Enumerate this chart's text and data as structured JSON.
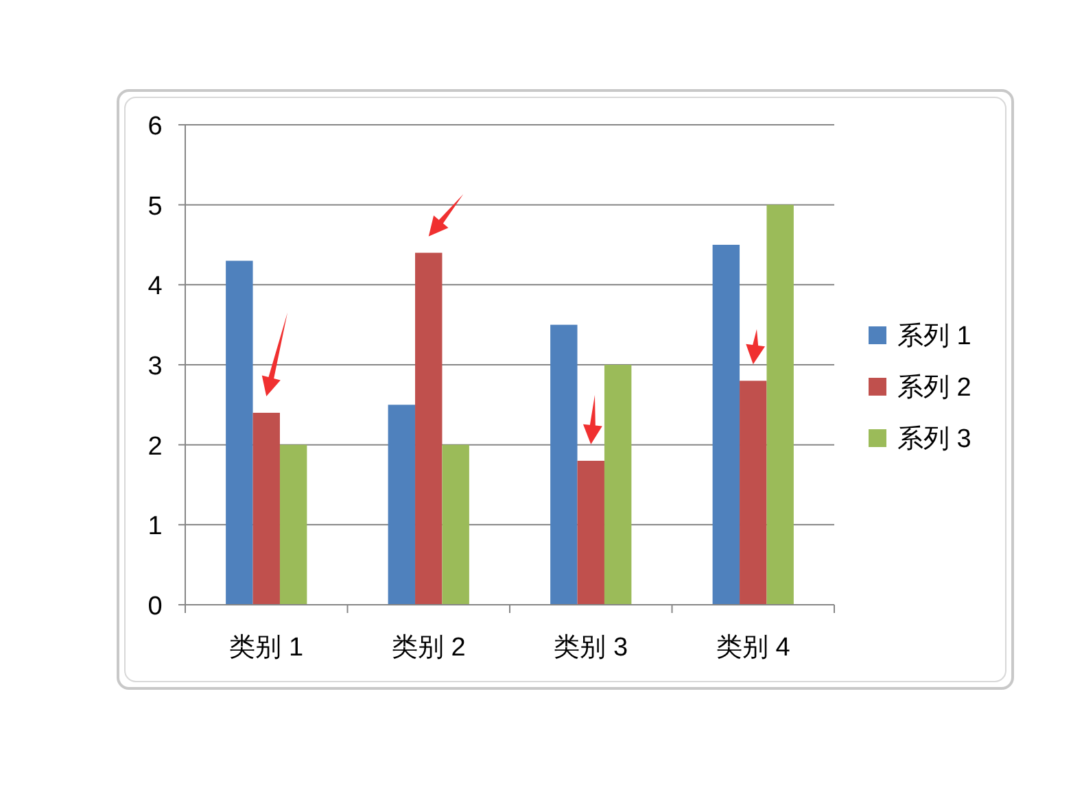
{
  "chart_data": {
    "type": "bar",
    "categories": [
      "类别 1",
      "类别 2",
      "类别 3",
      "类别 4"
    ],
    "series": [
      {
        "name": "系列 1",
        "color": "#4f81bd",
        "values": [
          4.3,
          2.5,
          3.5,
          4.5
        ]
      },
      {
        "name": "系列 2",
        "color": "#c0504d",
        "values": [
          2.4,
          4.4,
          1.8,
          2.8
        ]
      },
      {
        "name": "系列 3",
        "color": "#9bbb59",
        "values": [
          2,
          2,
          3,
          5
        ]
      }
    ],
    "ylim": [
      0,
      6
    ],
    "yticks": [
      0,
      1,
      2,
      3,
      4,
      5,
      6
    ],
    "grid": "y",
    "legend": "right"
  }
}
